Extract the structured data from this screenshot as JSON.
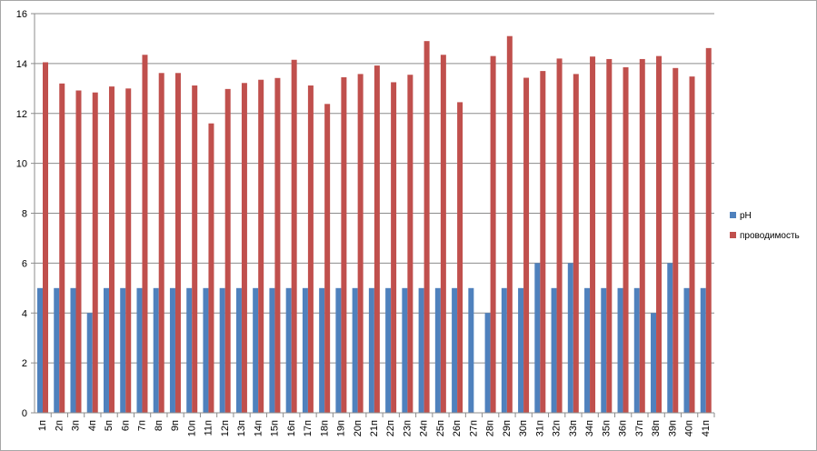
{
  "chart_data": {
    "type": "bar",
    "categories": [
      "1п",
      "2п",
      "3п",
      "4п",
      "5п",
      "6п",
      "7п",
      "8п",
      "9п",
      "10п",
      "11п",
      "12п",
      "13п",
      "14п",
      "15п",
      "16п",
      "17п",
      "18п",
      "19п",
      "20п",
      "21п",
      "22п",
      "23п",
      "24п",
      "25п",
      "26п",
      "27п",
      "28п",
      "29п",
      "30п",
      "31п",
      "32п",
      "33п",
      "34п",
      "35п",
      "36п",
      "37п",
      "38п",
      "39п",
      "40п",
      "41п"
    ],
    "series": [
      {
        "name": "pH",
        "color": "#4f81bd",
        "values": [
          5,
          5,
          5,
          4,
          5,
          5,
          5,
          5,
          5,
          5,
          5,
          5,
          5,
          5,
          5,
          5,
          5,
          5,
          5,
          5,
          5,
          5,
          5,
          5,
          5,
          5,
          5,
          4,
          5,
          5,
          6,
          5,
          6,
          5,
          5,
          5,
          5,
          4,
          6,
          5,
          5
        ]
      },
      {
        "name": "проводимость",
        "color": "#c0504d",
        "values": [
          14.05,
          13.2,
          12.92,
          12.84,
          13.08,
          13.0,
          14.35,
          13.62,
          13.62,
          13.12,
          11.6,
          12.98,
          13.22,
          13.35,
          13.42,
          14.15,
          13.12,
          12.38,
          13.45,
          13.58,
          13.92,
          13.25,
          13.55,
          14.9,
          14.35,
          12.45,
          0,
          14.3,
          15.1,
          13.43,
          13.7,
          14.2,
          13.58,
          14.28,
          14.18,
          13.85,
          14.18,
          14.3,
          13.82,
          13.48,
          14.62
        ]
      }
    ],
    "ylim": [
      0,
      16
    ],
    "yticks": [
      "0",
      "2",
      "4",
      "6",
      "8",
      "10",
      "12",
      "14",
      "16"
    ],
    "grid": "horizontal",
    "legend_position": "right",
    "title": "",
    "xlabel": "",
    "ylabel": ""
  }
}
